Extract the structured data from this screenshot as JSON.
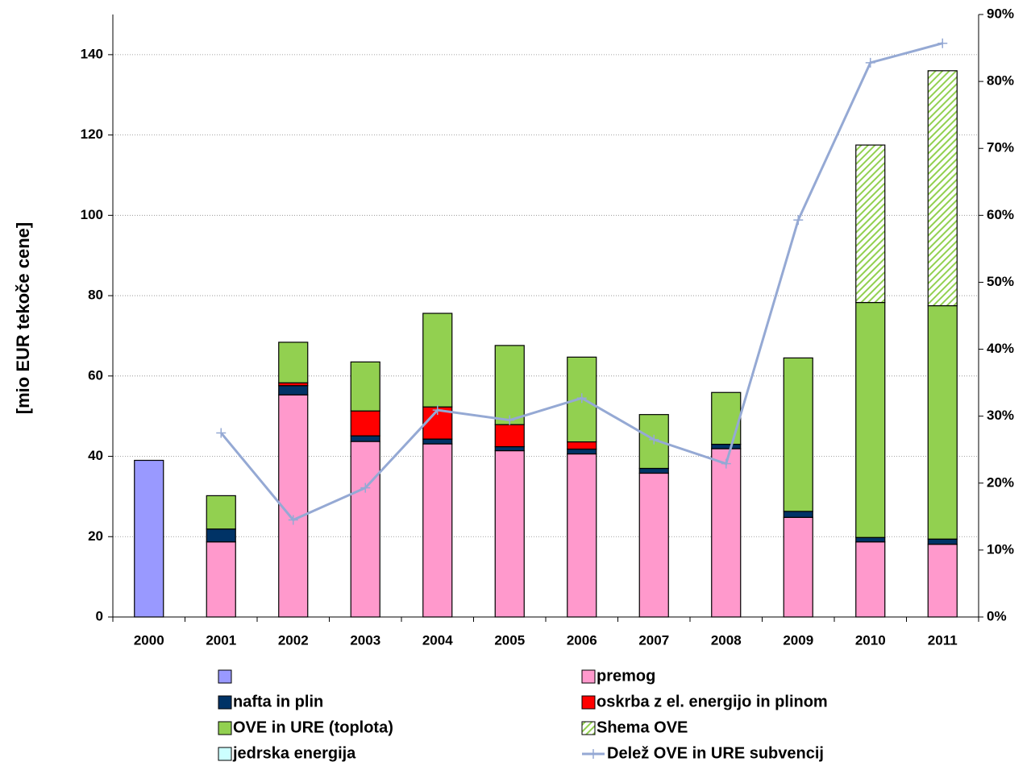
{
  "chart_data": {
    "type": "bar",
    "stacked": true,
    "y_label": "[mio EUR tekoče cene]",
    "categories": [
      "2000",
      "2001",
      "2002",
      "2003",
      "2004",
      "2005",
      "2006",
      "2007",
      "2008",
      "2009",
      "2010",
      "2011"
    ],
    "ylim": [
      0,
      150
    ],
    "yticks": [
      0,
      20,
      40,
      60,
      80,
      100,
      120,
      140
    ],
    "y2lim": [
      0,
      90
    ],
    "y2ticks": [
      {
        "value": 0,
        "label": "0%"
      },
      {
        "value": 10,
        "label": "10%"
      },
      {
        "value": 20,
        "label": "20%"
      },
      {
        "value": 30,
        "label": "30%"
      },
      {
        "value": 40,
        "label": "40%"
      },
      {
        "value": 50,
        "label": "50%"
      },
      {
        "value": 60,
        "label": "60%"
      },
      {
        "value": 70,
        "label": "70%"
      },
      {
        "value": 80,
        "label": "80%"
      },
      {
        "value": 90,
        "label": "90%"
      }
    ],
    "grid": true,
    "series": [
      {
        "name": null,
        "color": "#9999ff",
        "values": [
          39,
          null,
          null,
          null,
          null,
          null,
          null,
          null,
          null,
          null,
          null,
          null
        ]
      },
      {
        "name": "premog",
        "color": "#ff99cc",
        "values": [
          null,
          18.7,
          55.3,
          43.7,
          43.1,
          41.4,
          40.6,
          35.8,
          41.9,
          24.8,
          18.7,
          18.1
        ]
      },
      {
        "name": "nafta in plin",
        "color": "#003366",
        "values": [
          null,
          3.2,
          2.3,
          1.4,
          1.2,
          1.0,
          1.2,
          1.2,
          1.1,
          1.5,
          1.1,
          1.3
        ]
      },
      {
        "name": "oskrba z el. energijo in plinom",
        "color": "#ff0000",
        "values": [
          null,
          null,
          0.7,
          6.2,
          8.0,
          5.5,
          1.8,
          null,
          null,
          null,
          null,
          null
        ]
      },
      {
        "name": "OVE in URE (toplota)",
        "color": "#92d050",
        "values": [
          null,
          8.3,
          10.1,
          12.2,
          23.3,
          19.7,
          21.1,
          13.4,
          12.9,
          38.2,
          58.5,
          58.1
        ]
      },
      {
        "name": "Shema OVE",
        "color": "#92d050",
        "hatch": true,
        "values": [
          null,
          null,
          null,
          null,
          null,
          null,
          null,
          null,
          null,
          null,
          39.2,
          58.5
        ]
      },
      {
        "name": "jedrska energija",
        "color": "#ccffff",
        "values": [
          null,
          null,
          null,
          null,
          null,
          null,
          null,
          null,
          null,
          null,
          null,
          null
        ]
      },
      {
        "name": "Delež OVE in URE subvencij",
        "type": "line",
        "axis": "y2",
        "color": "#95a9d4",
        "values": [
          null,
          27.5,
          14.5,
          19.3,
          30.9,
          29.4,
          32.7,
          26.5,
          22.9,
          59.3,
          82.8,
          85.7
        ]
      }
    ]
  }
}
